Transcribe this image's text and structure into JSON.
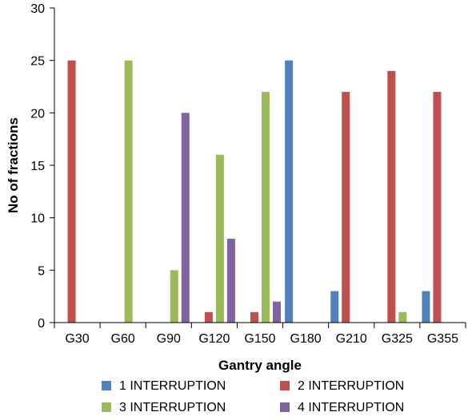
{
  "chart_data": {
    "type": "bar",
    "xlabel": "Gantry angle",
    "ylabel": "No of fractions",
    "ylim": [
      0,
      30
    ],
    "yticks": [
      0,
      5,
      10,
      15,
      20,
      25,
      30
    ],
    "grid": false,
    "legend_position": "bottom",
    "categories": [
      "G30",
      "G60",
      "G90",
      "G120",
      "G150",
      "G180",
      "G210",
      "G325",
      "G355"
    ],
    "series": [
      {
        "name": "1 INTERRUPTION",
        "color": "#4f81bd",
        "values": [
          0,
          0,
          0,
          0,
          0,
          25,
          3,
          0,
          3
        ]
      },
      {
        "name": "2 INTERRUPTION",
        "color": "#c0504d",
        "values": [
          25,
          0,
          0,
          1,
          1,
          0,
          22,
          24,
          22
        ]
      },
      {
        "name": "3 INTERRUPTION",
        "color": "#9bbb59",
        "values": [
          0,
          25,
          5,
          16,
          22,
          0,
          0,
          1,
          0
        ]
      },
      {
        "name": "4 INTERRUPTION",
        "color": "#8064a2",
        "values": [
          0,
          0,
          20,
          8,
          2,
          0,
          0,
          0,
          0
        ]
      }
    ]
  }
}
